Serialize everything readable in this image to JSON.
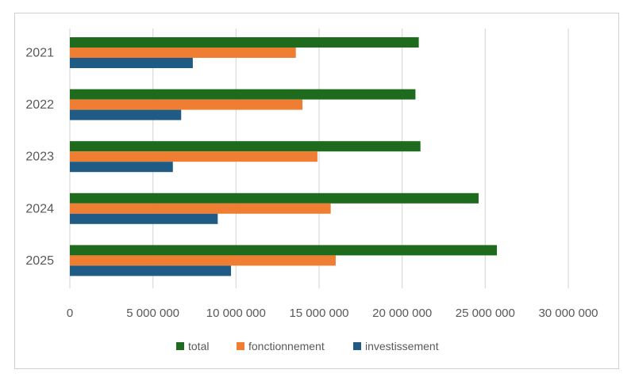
{
  "chart_data": {
    "type": "bar",
    "orientation": "horizontal",
    "categories": [
      "2021",
      "2022",
      "2023",
      "2024",
      "2025"
    ],
    "series": [
      {
        "name": "total",
        "color": "#1e6b1e",
        "values": [
          21000000,
          20800000,
          21100000,
          24600000,
          25700000
        ]
      },
      {
        "name": "fonctionnement",
        "color": "#ef7d32",
        "values": [
          13600000,
          14000000,
          14900000,
          15700000,
          16000000
        ]
      },
      {
        "name": "investissement",
        "color": "#1f5b85",
        "values": [
          7400000,
          6700000,
          6200000,
          8900000,
          9700000
        ]
      }
    ],
    "xticks": [
      0,
      5000000,
      10000000,
      15000000,
      20000000,
      25000000,
      30000000
    ],
    "xtick_labels": [
      "0",
      "5 000 000",
      "10 000 000",
      "15 000 000",
      "20 000 000",
      "25 000 000",
      "30 000 000"
    ],
    "xlim": [
      0,
      30000000
    ],
    "grid": "vertical",
    "legend": "bottom"
  }
}
